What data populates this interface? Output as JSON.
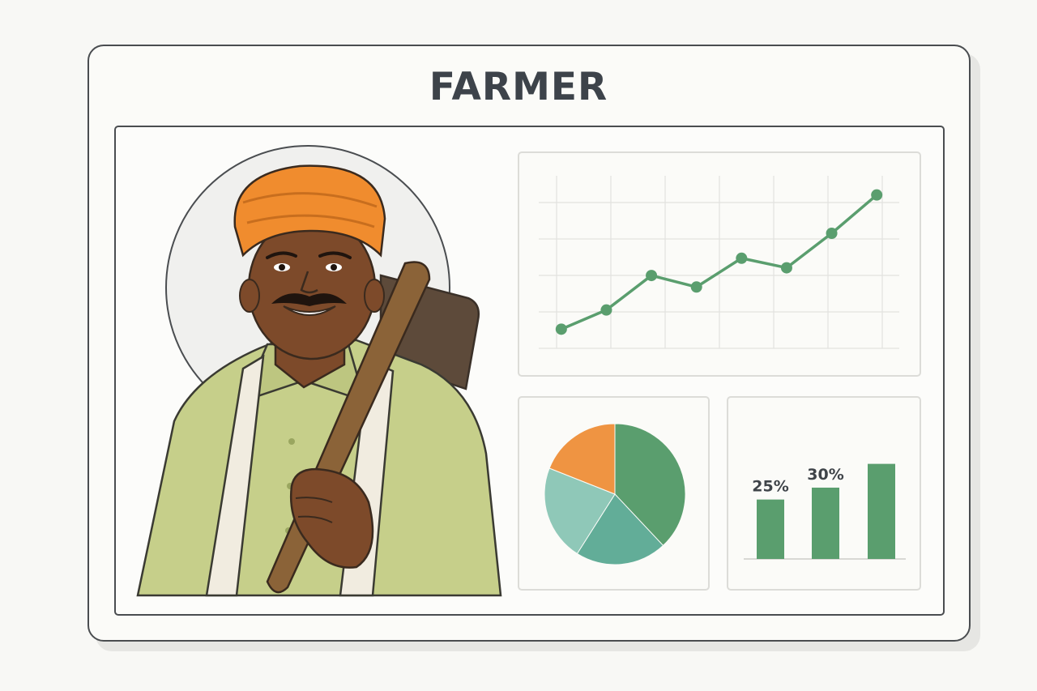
{
  "title": "FARMER",
  "colors": {
    "green": "#5a9e6e",
    "orange": "#ef9442",
    "teal_light": "#8fc8b8",
    "teal": "#62ad98",
    "turban": "#f08c2e",
    "shirt": "#c6cf8a",
    "skin": "#7d4a2a",
    "tool_handle": "#8b6338",
    "tool_head": "#5d4a3a"
  },
  "illustration": {
    "subject": "farmer-portrait",
    "icons": [
      "turban-icon",
      "hoe-icon",
      "towel-icon"
    ]
  },
  "line_chart": {
    "chart_data": {
      "type": "line",
      "x": [
        1,
        2,
        3,
        4,
        5,
        6,
        7,
        8
      ],
      "y": [
        1.0,
        2.0,
        3.8,
        3.2,
        4.7,
        4.2,
        6.0,
        8.0
      ],
      "xlim": [
        0.5,
        8.5
      ],
      "ylim": [
        0,
        9
      ],
      "grid": true
    }
  },
  "pie_chart": {
    "chart_data": {
      "type": "pie",
      "values": [
        38,
        21,
        22,
        19
      ]
    }
  },
  "bar_chart": {
    "chart_data": {
      "type": "bar",
      "values": [
        25,
        30,
        40
      ],
      "labels": [
        "25%",
        "30%",
        ""
      ],
      "ylim": [
        0,
        46
      ]
    }
  }
}
